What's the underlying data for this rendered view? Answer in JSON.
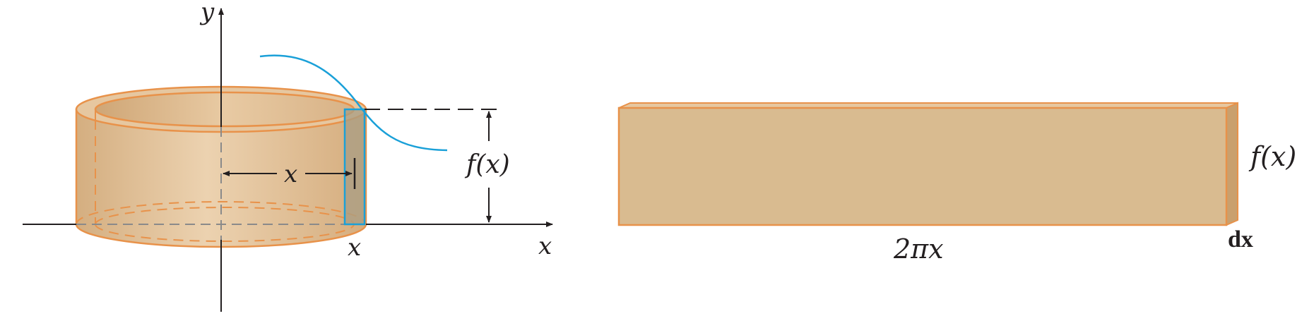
{
  "labels": {
    "y_axis": "y",
    "x_axis": "x",
    "x_tick": "x",
    "radius": "x",
    "height_left": "f(x)",
    "height_right": "f(x)",
    "circumference": "2πx",
    "thickness": "dx"
  },
  "colors": {
    "shell_fill": "#e2c29a",
    "shell_fill_dark": "#d2a979",
    "shell_edge": "#e8924a",
    "rect_fill": "#d9bb90",
    "curve": "#1aa0d8",
    "axis": "#231f20",
    "hidden_line": "#8a8a8a"
  }
}
